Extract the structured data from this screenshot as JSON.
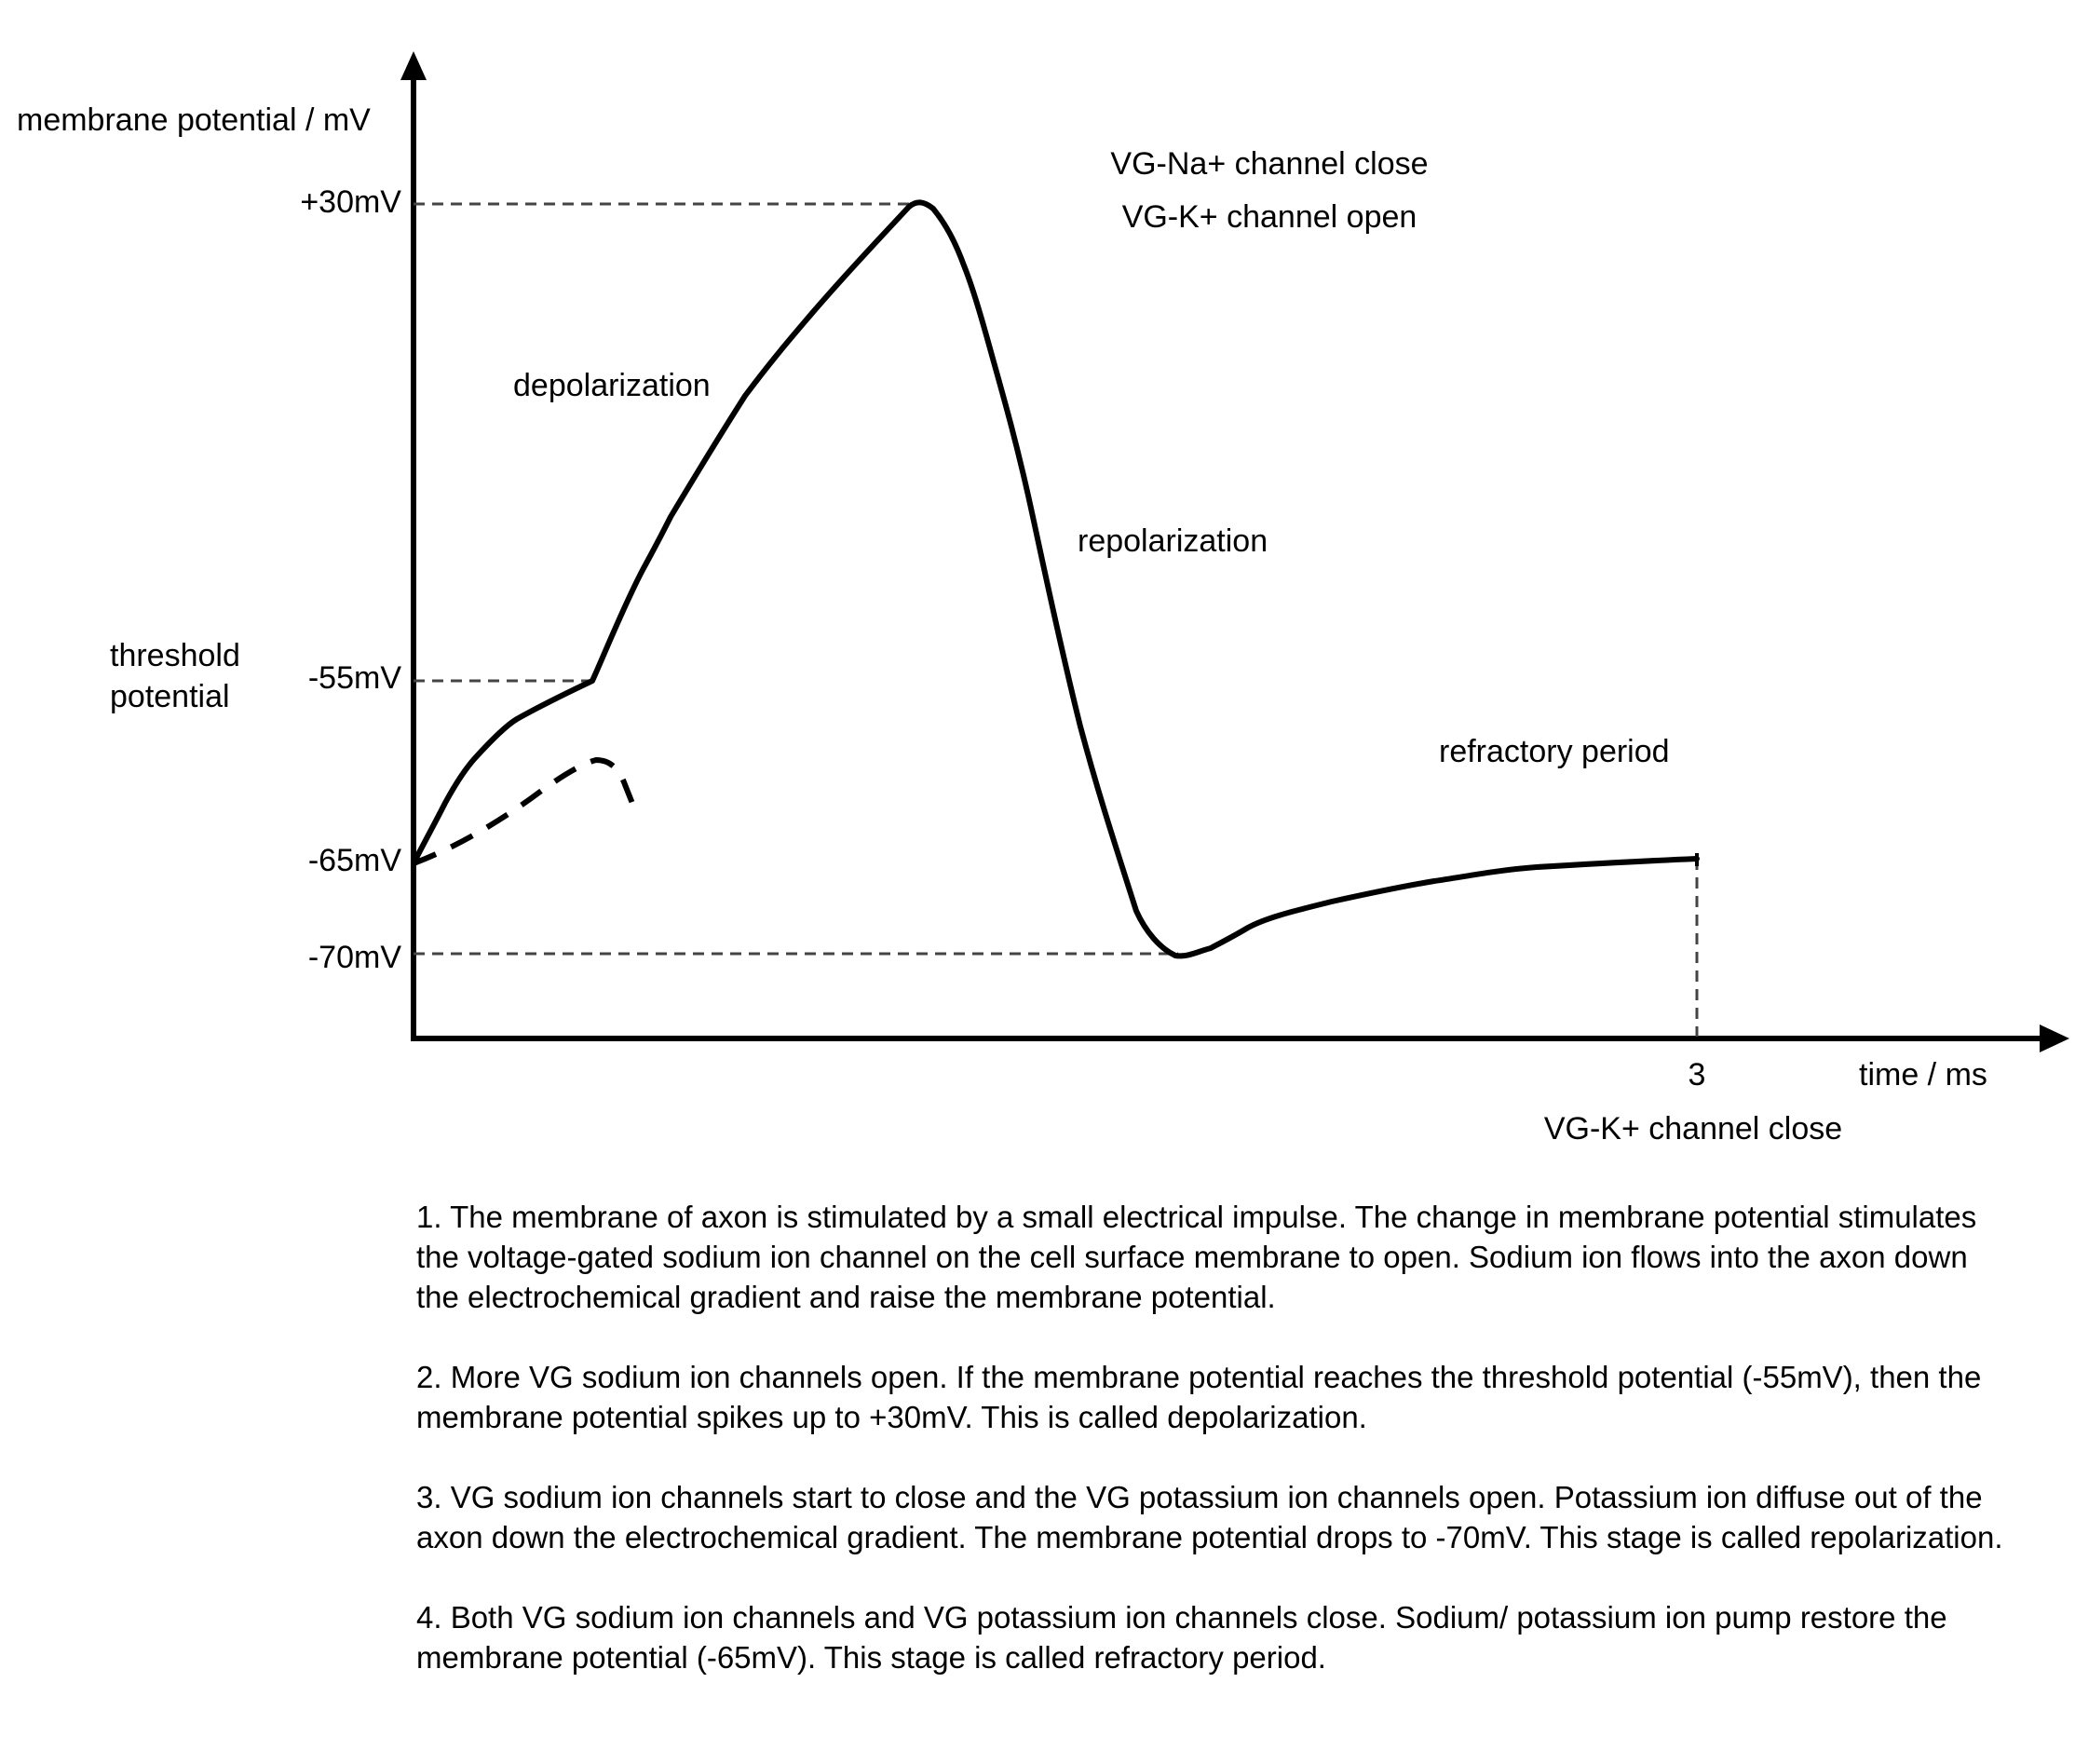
{
  "diagram": {
    "y_axis_title": "membrane potential / mV",
    "x_axis_title": "time / ms",
    "y_ticks": {
      "plus30": "+30mV",
      "minus55": "-55mV",
      "minus65": "-65mV",
      "minus70": "-70mV"
    },
    "x_tick": "3",
    "threshold_label_line1": "threshold",
    "threshold_label_line2": "potential",
    "annotations": {
      "na_close": "VG-Na+ channel close",
      "k_open": "VG-K+ channel open",
      "depolarization": "depolarization",
      "repolarization": "repolarization",
      "refractory": "refractory period",
      "k_close": "VG-K+ channel close"
    }
  },
  "notes": [
    "1.  The membrane of axon is stimulated by a small electrical impulse. The change in membrane potential stimulates the voltage-gated sodium ion channel on the cell surface membrane to open. Sodium ion flows into the axon down the electrochemical gradient and raise the membrane potential.",
    "2.  More VG sodium ion channels open. If the membrane potential reaches the threshold potential (-55mV), then the membrane potential spikes up to +30mV. This is called depolarization.",
    "3.  VG sodium ion channels start to close and the VG potassium ion channels open. Potassium ion diffuse out of the axon down the electrochemical gradient. The membrane potential drops to -70mV. This stage is called repolarization.",
    "4.  Both VG sodium ion channels and VG potassium ion channels close. Sodium/ potassium ion pump restore the membrane potential (-65mV). This stage is called refractory period."
  ]
}
